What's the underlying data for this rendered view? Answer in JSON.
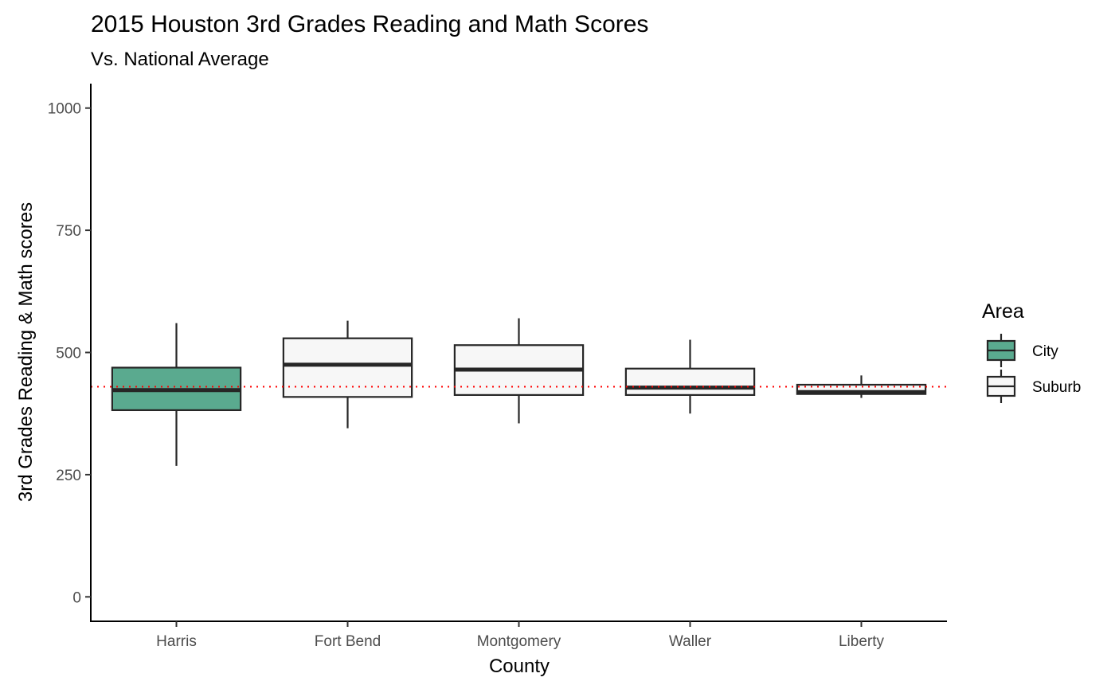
{
  "chart_data": {
    "type": "boxplot",
    "title": "2015 Houston 3rd Grades Reading and Math Scores",
    "subtitle": "Vs. National Average",
    "xlabel": "County",
    "ylabel": "3rd Grades Reading & Math scores",
    "ylim": [
      -50,
      1050
    ],
    "yticks": [
      0,
      250,
      500,
      750,
      1000
    ],
    "categories": [
      "Harris",
      "Fort Bend",
      "Montgomery",
      "Waller",
      "Liberty"
    ],
    "reference_line": {
      "value": 430,
      "color": "#ff0000",
      "style": "dotted"
    },
    "legend": {
      "title": "Area",
      "position": "right",
      "entries": [
        {
          "label": "City",
          "color": "#5aaa8f"
        },
        {
          "label": "Suburb",
          "color": "#f7f7f7"
        }
      ]
    },
    "series": [
      {
        "category": "Harris",
        "area": "City",
        "min": 268,
        "q1": 382,
        "median": 423,
        "q3": 469,
        "max": 560
      },
      {
        "category": "Fort Bend",
        "area": "Suburb",
        "min": 345,
        "q1": 409,
        "median": 475,
        "q3": 529,
        "max": 565
      },
      {
        "category": "Montgomery",
        "area": "Suburb",
        "min": 355,
        "q1": 413,
        "median": 465,
        "q3": 515,
        "max": 570
      },
      {
        "category": "Waller",
        "area": "Suburb",
        "min": 375,
        "q1": 413,
        "median": 428,
        "q3": 467,
        "max": 526
      },
      {
        "category": "Liberty",
        "area": "Suburb",
        "min": 407,
        "q1": 415,
        "median": 419,
        "q3": 434,
        "max": 453
      }
    ],
    "grid": false,
    "colors": {
      "axis": "#000000",
      "box_stroke": "#262626",
      "tick_label": "#4d4d4d"
    }
  }
}
